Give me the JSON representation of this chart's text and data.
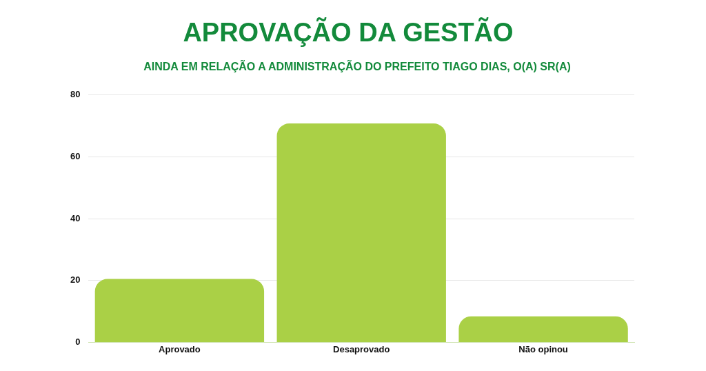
{
  "chart_data": {
    "type": "bar",
    "title": "APROVAÇÃO DA GESTÃO",
    "subtitle": "AINDA EM RELAÇÃO A ADMINISTRAÇÃO DO PREFEITO TIAGO DIAS, O(A) SR(A)",
    "categories": [
      "Aprovado",
      "Desaprovado",
      "Não opinou"
    ],
    "values": [
      20.5,
      70.8,
      8.4
    ],
    "color": "#aad046",
    "ylim": [
      0,
      80
    ],
    "yticks": [
      0,
      20,
      40,
      60,
      80
    ],
    "grid": "y"
  }
}
